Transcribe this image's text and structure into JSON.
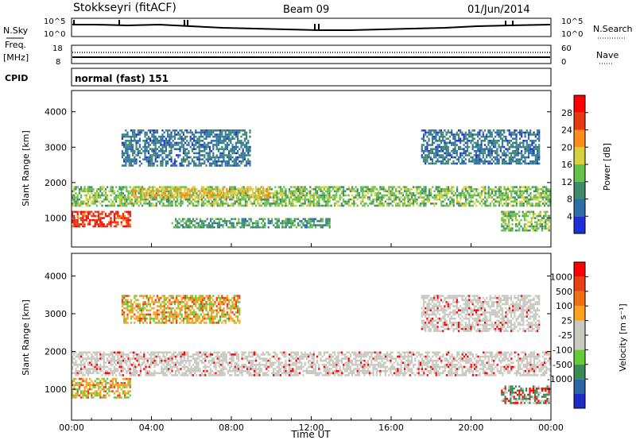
{
  "header": {
    "station": "Stokkseyri (fitACF)",
    "beam": "Beam 09",
    "date": "01/Jun/2014"
  },
  "nsky_panel": {
    "left_label": "N.Sky",
    "right_label": "N.Search",
    "left_ticks": [
      "10^5",
      "10^0"
    ],
    "right_ticks": [
      "10^5",
      "10^0"
    ]
  },
  "freq_panel": {
    "label_line1": "Freq.",
    "label_line2": "[MHz]",
    "left_ticks": [
      "18",
      "8"
    ],
    "right_ticks": [
      "60",
      "0"
    ],
    "right_label": "Nave"
  },
  "cpid_panel": {
    "label": "CPID",
    "text": "normal (fast) 151"
  },
  "power_panel": {
    "ylabel": "Slant Range [km]",
    "yticks": [
      "1000",
      "2000",
      "3000",
      "4000"
    ],
    "colorbar_label": "Power [dB]",
    "colorbar_ticks": [
      "4",
      "8",
      "12",
      "16",
      "20",
      "24",
      "28"
    ]
  },
  "velocity_panel": {
    "ylabel": "Slant Range [km]",
    "yticks": [
      "1000",
      "2000",
      "3000",
      "4000"
    ],
    "colorbar_label": "Velocity [m s⁻¹]",
    "colorbar_ticks": [
      "1000",
      "500",
      "100",
      "25",
      "-25",
      "-100",
      "-500",
      "-1000"
    ]
  },
  "xaxis": {
    "ticks": [
      "00:00",
      "04:00",
      "08:00",
      "12:00",
      "16:00",
      "20:00",
      "00:00"
    ],
    "label": "Time UT"
  },
  "colors": {
    "power_scale": [
      "#1f2fd6",
      "#2f6fa8",
      "#3f8a6a",
      "#66c04a",
      "#d8d040",
      "#ff8c1a",
      "#e53a10",
      "#ff0000"
    ],
    "velocity_scale": [
      "#1d2bc8",
      "#2a66a2",
      "#3a8a55",
      "#66cc33",
      "#c8c8c0",
      "#c8c8c0",
      "#ffa020",
      "#f07010",
      "#e84010",
      "#ff0000"
    ],
    "velocity_main": "#c8c8c0"
  },
  "chart_data": [
    {
      "type": "heatmap",
      "title": "Power",
      "xlabel": "Time UT",
      "ylabel": "Slant Range [km]",
      "xlim": [
        0,
        24
      ],
      "ylim": [
        180,
        4600
      ],
      "colorbar": {
        "label": "Power [dB]",
        "range": [
          0,
          32
        ],
        "ticks": [
          4,
          8,
          12,
          16,
          20,
          24,
          28
        ]
      },
      "regions": [
        {
          "t": [
            0.0,
            3.0
          ],
          "range": [
            700,
            1200
          ],
          "power": 28
        },
        {
          "t": [
            0.0,
            24.0
          ],
          "range": [
            1300,
            1900
          ],
          "power": 14
        },
        {
          "t": [
            3.0,
            10.0
          ],
          "range": [
            1500,
            1850
          ],
          "power": 20
        },
        {
          "t": [
            2.5,
            9.0
          ],
          "range": [
            2400,
            3500
          ],
          "power": 6
        },
        {
          "t": [
            17.5,
            23.5
          ],
          "range": [
            2500,
            3500
          ],
          "power": 6
        },
        {
          "t": [
            5.0,
            13.0
          ],
          "range": [
            700,
            1000
          ],
          "power": 10
        },
        {
          "t": [
            21.5,
            24.0
          ],
          "range": [
            600,
            1200
          ],
          "power": 14
        }
      ]
    },
    {
      "type": "heatmap",
      "title": "Velocity",
      "xlabel": "Time UT",
      "ylabel": "Slant Range [km]",
      "xlim": [
        0,
        24
      ],
      "ylim": [
        180,
        4600
      ],
      "colorbar": {
        "label": "Velocity [m s-1]",
        "ticks": [
          1000,
          500,
          100,
          25,
          -25,
          -100,
          -500,
          -1000
        ]
      },
      "regions": [
        {
          "t": [
            0.0,
            3.0
          ],
          "range": [
            700,
            1300
          ],
          "velocity": -200
        },
        {
          "t": [
            0.0,
            24.0
          ],
          "range": [
            1300,
            2000
          ],
          "velocity": 0
        },
        {
          "t": [
            2.5,
            8.5
          ],
          "range": [
            2700,
            3500
          ],
          "velocity": -150
        },
        {
          "t": [
            17.5,
            23.5
          ],
          "range": [
            2500,
            3500
          ],
          "velocity": 0
        },
        {
          "t": [
            21.5,
            24.0
          ],
          "range": [
            600,
            1100
          ],
          "velocity": 300
        }
      ]
    }
  ]
}
